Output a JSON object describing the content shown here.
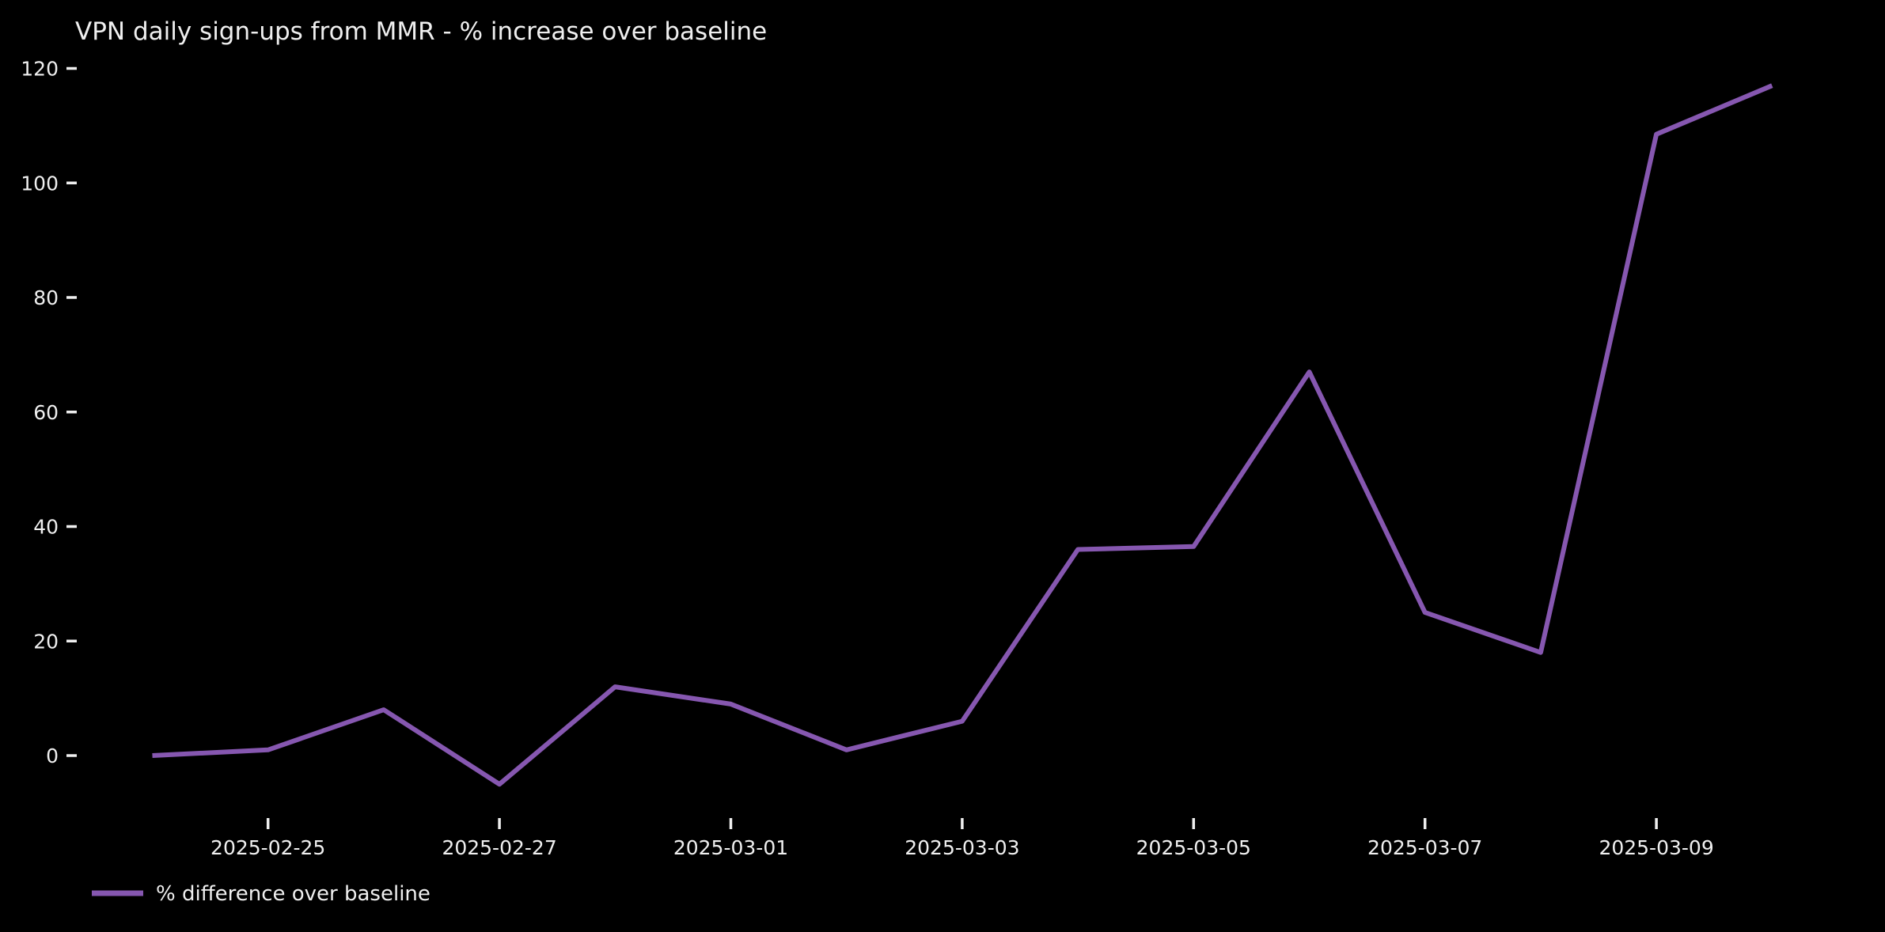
{
  "background_color": "#000000",
  "text_color": "#efefef",
  "chart_data": {
    "type": "line",
    "title": "VPN daily sign-ups from MMR - % increase over baseline",
    "legend": [
      "% difference over baseline"
    ],
    "legend_position": "lower-left-below-plot",
    "series_color": "#8657b0",
    "grid": false,
    "x": [
      "2025-02-24",
      "2025-02-25",
      "2025-02-26",
      "2025-02-27",
      "2025-02-28",
      "2025-03-01",
      "2025-03-02",
      "2025-03-03",
      "2025-03-04",
      "2025-03-05",
      "2025-03-06",
      "2025-03-07",
      "2025-03-08",
      "2025-03-09",
      "2025-03-10"
    ],
    "values": [
      0,
      1,
      8,
      -5,
      12,
      9,
      1,
      6,
      36,
      36.5,
      67,
      25,
      18,
      108.5,
      117
    ],
    "x_tick_labels": [
      "2025-02-25",
      "2025-02-27",
      "2025-03-01",
      "2025-03-03",
      "2025-03-05",
      "2025-03-07",
      "2025-03-09"
    ],
    "y_ticks": [
      0,
      20,
      40,
      60,
      80,
      100,
      120
    ],
    "ylim": [
      -11,
      124
    ],
    "ylabel": "",
    "xlabel": ""
  }
}
